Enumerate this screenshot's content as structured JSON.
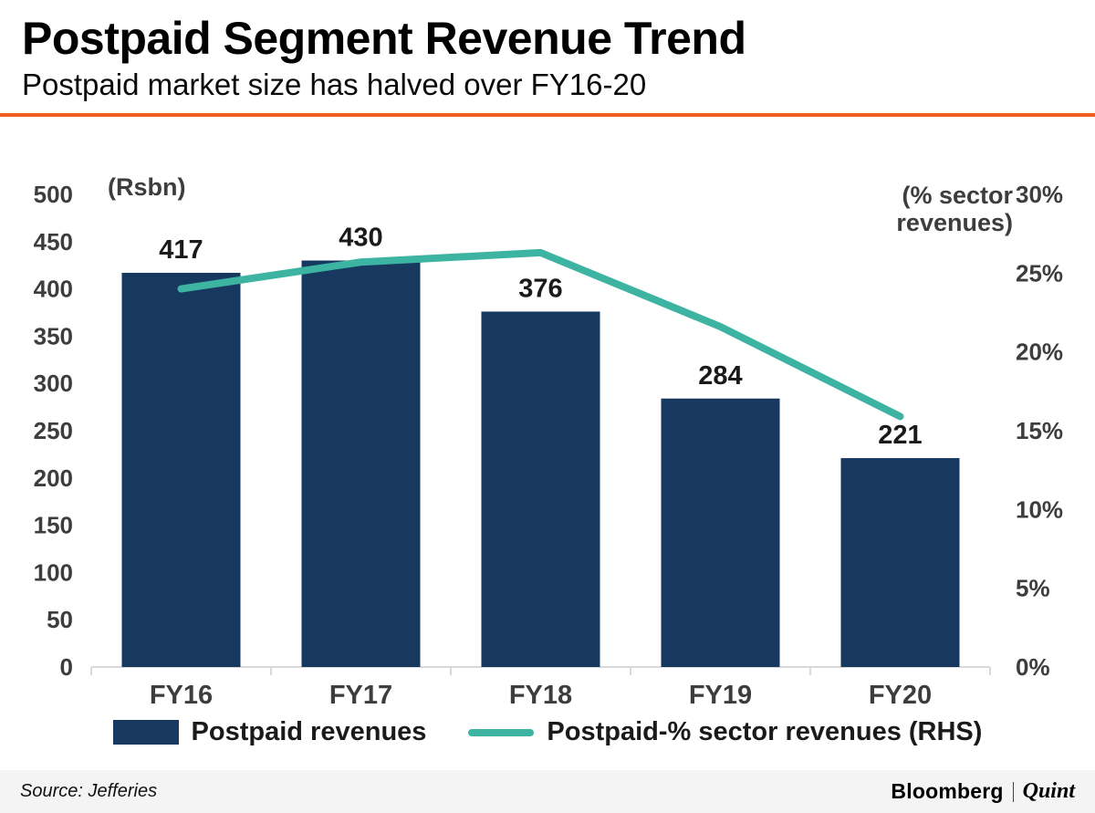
{
  "header": {
    "title": "Postpaid Segment Revenue Trend",
    "subtitle": "Postpaid market size has halved over FY16-20"
  },
  "chart_data": {
    "type": "bar",
    "subtype": "bar+line combo, dual axis",
    "categories": [
      "FY16",
      "FY17",
      "FY18",
      "FY19",
      "FY20"
    ],
    "series": [
      {
        "name": "Postpaid revenues",
        "type": "bar",
        "axis": "left",
        "values": [
          417,
          430,
          376,
          284,
          221
        ],
        "color": "#17395f"
      },
      {
        "name": "Postpaid-% sector revenues (RHS)",
        "type": "line",
        "axis": "right",
        "values": [
          24,
          25.7,
          26.3,
          21.6,
          15.9
        ],
        "color": "#3db3a2"
      }
    ],
    "data_labels": [
      "417",
      "430",
      "376",
      "284",
      "221"
    ],
    "left_axis": {
      "unit_label": "(Rsbn)",
      "min": 0,
      "max": 500,
      "step": 50,
      "suffix": ""
    },
    "right_axis": {
      "unit_label": "(% sector revenues)",
      "min": 0,
      "max": 30,
      "step": 5,
      "suffix": "%"
    },
    "grid": false,
    "legend_position": "bottom"
  },
  "legend": {
    "items": [
      {
        "label": "Postpaid revenues",
        "swatch": "bar",
        "color": "#17395f"
      },
      {
        "label": "Postpaid-% sector revenues (RHS)",
        "swatch": "line",
        "color": "#3db3a2"
      }
    ]
  },
  "footer": {
    "source": "Source: Jefferies",
    "brand": {
      "primary": "Bloomberg",
      "secondary": "Quint"
    }
  },
  "colors": {
    "bar": "#17395f",
    "line": "#3db3a2",
    "accent_rule": "#f15c22",
    "axis_text": "#3d3d3d",
    "value_text": "#1a1a1a",
    "baseline": "#d9d9d9",
    "footer_bg": "#f4f4f4"
  }
}
